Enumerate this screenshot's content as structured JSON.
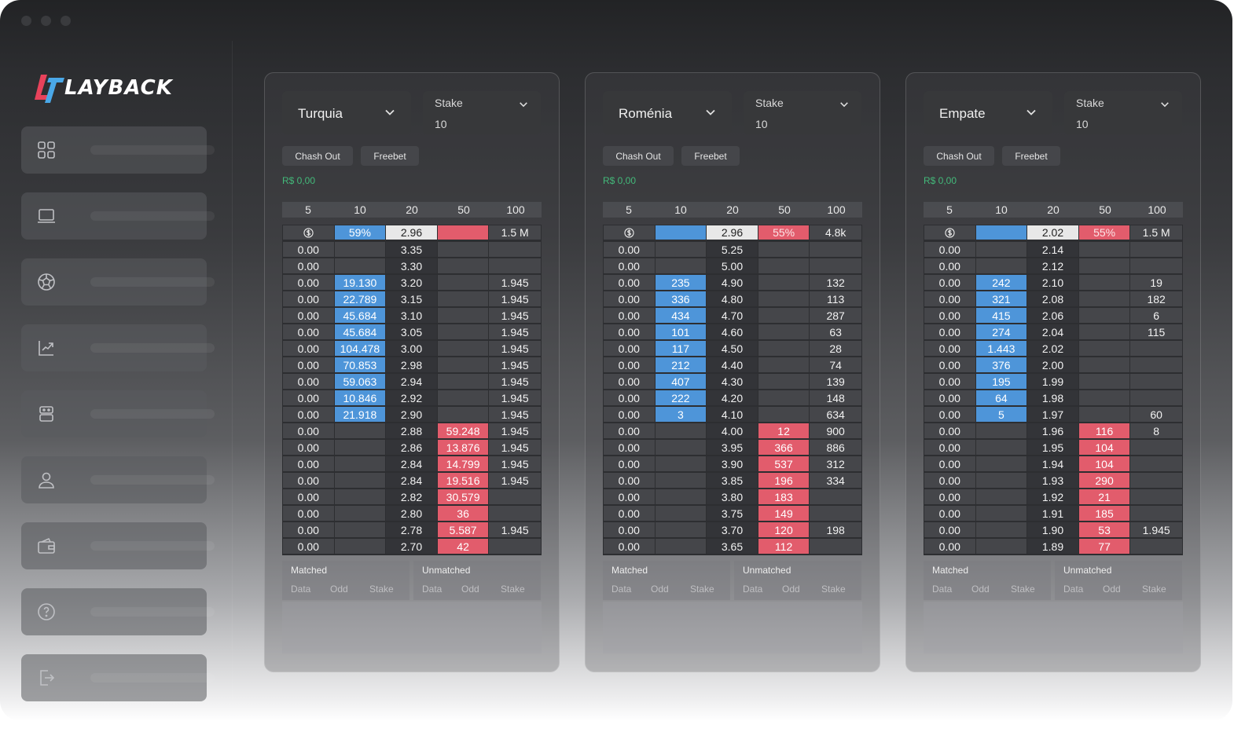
{
  "brand": {
    "name": "LAYBACK"
  },
  "colors": {
    "back": "#4e95d9",
    "lay": "#e25c6c",
    "balance": "#43b97a"
  },
  "sidebar": {
    "items": [
      {
        "icon": "dashboard-grid-icon"
      },
      {
        "icon": "laptop-icon"
      },
      {
        "icon": "soccer-ball-icon"
      },
      {
        "icon": "chart-trend-icon"
      },
      {
        "icon": "robot-icon"
      },
      {
        "icon": "user-icon"
      },
      {
        "icon": "wallet-icon"
      },
      {
        "icon": "help-icon"
      },
      {
        "icon": "logout-icon"
      }
    ]
  },
  "panels": [
    {
      "selection": "Turquia",
      "stake_label": "Stake",
      "stake_value": "10",
      "cash_out_label": "Chash Out",
      "freebet_label": "Freebet",
      "balance": "R$ 0,00",
      "headers": [
        "5",
        "10",
        "20",
        "50",
        "100"
      ],
      "top": {
        "back": "59%",
        "price": "2.96",
        "lay": "",
        "volume": "1.5 M"
      },
      "ladder": [
        [
          "0.00",
          "",
          "3.35",
          "",
          ""
        ],
        [
          "0.00",
          "",
          "3.30",
          "",
          ""
        ],
        [
          "0.00",
          "19.130",
          "3.20",
          "",
          "1.945"
        ],
        [
          "0.00",
          "22.789",
          "3.15",
          "",
          "1.945"
        ],
        [
          "0.00",
          "45.684",
          "3.10",
          "",
          "1.945"
        ],
        [
          "0.00",
          "45.684",
          "3.05",
          "",
          "1.945"
        ],
        [
          "0.00",
          "104.478",
          "3.00",
          "",
          "1.945"
        ],
        [
          "0.00",
          "70.853",
          "2.98",
          "",
          "1.945"
        ],
        [
          "0.00",
          "59.063",
          "2.94",
          "",
          "1.945"
        ],
        [
          "0.00",
          "10.846",
          "2.92",
          "",
          "1.945"
        ],
        [
          "0.00",
          "21.918",
          "2.90",
          "",
          "1.945"
        ],
        [
          "0.00",
          "",
          "2.88",
          "59.248",
          "1.945"
        ],
        [
          "0.00",
          "",
          "2.86",
          "13.876",
          "1.945"
        ],
        [
          "0.00",
          "",
          "2.84",
          "14.799",
          "1.945"
        ],
        [
          "0.00",
          "",
          "2.84",
          "19.516",
          "1.945"
        ],
        [
          "0.00",
          "",
          "2.82",
          "30.579",
          ""
        ],
        [
          "0.00",
          "",
          "2.80",
          "36",
          ""
        ],
        [
          "0.00",
          "",
          "2.78",
          "5.587",
          "1.945"
        ],
        [
          "0.00",
          "",
          "2.70",
          "42",
          ""
        ]
      ],
      "matched_label": "Matched",
      "unmatched_label": "Unmatched",
      "bet_columns": [
        "Data",
        "Odd",
        "Stake"
      ]
    },
    {
      "selection": "Roménia",
      "stake_label": "Stake",
      "stake_value": "10",
      "cash_out_label": "Chash Out",
      "freebet_label": "Freebet",
      "balance": "R$ 0,00",
      "headers": [
        "5",
        "10",
        "20",
        "50",
        "100"
      ],
      "top": {
        "back": "",
        "price": "2.96",
        "lay": "55%",
        "volume": "4.8k"
      },
      "ladder": [
        [
          "0.00",
          "",
          "5.25",
          "",
          ""
        ],
        [
          "0.00",
          "",
          "5.00",
          "",
          ""
        ],
        [
          "0.00",
          "235",
          "4.90",
          "",
          "132"
        ],
        [
          "0.00",
          "336",
          "4.80",
          "",
          "113"
        ],
        [
          "0.00",
          "434",
          "4.70",
          "",
          "287"
        ],
        [
          "0.00",
          "101",
          "4.60",
          "",
          "63"
        ],
        [
          "0.00",
          "117",
          "4.50",
          "",
          "28"
        ],
        [
          "0.00",
          "212",
          "4.40",
          "",
          "74"
        ],
        [
          "0.00",
          "407",
          "4.30",
          "",
          "139"
        ],
        [
          "0.00",
          "222",
          "4.20",
          "",
          "148"
        ],
        [
          "0.00",
          "3",
          "4.10",
          "",
          "634"
        ],
        [
          "0.00",
          "",
          "4.00",
          "12",
          "900"
        ],
        [
          "0.00",
          "",
          "3.95",
          "366",
          "886"
        ],
        [
          "0.00",
          "",
          "3.90",
          "537",
          "312"
        ],
        [
          "0.00",
          "",
          "3.85",
          "196",
          "334"
        ],
        [
          "0.00",
          "",
          "3.80",
          "183",
          ""
        ],
        [
          "0.00",
          "",
          "3.75",
          "149",
          ""
        ],
        [
          "0.00",
          "",
          "3.70",
          "120",
          "198"
        ],
        [
          "0.00",
          "",
          "3.65",
          "112",
          ""
        ]
      ],
      "matched_label": "Matched",
      "unmatched_label": "Unmatched",
      "bet_columns": [
        "Data",
        "Odd",
        "Stake"
      ]
    },
    {
      "selection": "Empate",
      "stake_label": "Stake",
      "stake_value": "10",
      "cash_out_label": "Chash Out",
      "freebet_label": "Freebet",
      "balance": "R$ 0,00",
      "headers": [
        "5",
        "10",
        "20",
        "50",
        "100"
      ],
      "top": {
        "back": "",
        "price": "2.02",
        "lay": "55%",
        "volume": "1.5 M"
      },
      "ladder": [
        [
          "0.00",
          "",
          "2.14",
          "",
          ""
        ],
        [
          "0.00",
          "",
          "2.12",
          "",
          ""
        ],
        [
          "0.00",
          "242",
          "2.10",
          "",
          "19"
        ],
        [
          "0.00",
          "321",
          "2.08",
          "",
          "182"
        ],
        [
          "0.00",
          "415",
          "2.06",
          "",
          "6"
        ],
        [
          "0.00",
          "274",
          "2.04",
          "",
          "115"
        ],
        [
          "0.00",
          "1.443",
          "2.02",
          "",
          ""
        ],
        [
          "0.00",
          "376",
          "2.00",
          "",
          ""
        ],
        [
          "0.00",
          "195",
          "1.99",
          "",
          ""
        ],
        [
          "0.00",
          "64",
          "1.98",
          "",
          ""
        ],
        [
          "0.00",
          "5",
          "1.97",
          "",
          "60"
        ],
        [
          "0.00",
          "",
          "1.96",
          "116",
          "8"
        ],
        [
          "0.00",
          "",
          "1.95",
          "104",
          ""
        ],
        [
          "0.00",
          "",
          "1.94",
          "104",
          ""
        ],
        [
          "0.00",
          "",
          "1.93",
          "290",
          ""
        ],
        [
          "0.00",
          "",
          "1.92",
          "21",
          ""
        ],
        [
          "0.00",
          "",
          "1.91",
          "185",
          ""
        ],
        [
          "0.00",
          "",
          "1.90",
          "53",
          "1.945"
        ],
        [
          "0.00",
          "",
          "1.89",
          "77",
          ""
        ]
      ],
      "matched_label": "Matched",
      "unmatched_label": "Unmatched",
      "bet_columns": [
        "Data",
        "Odd",
        "Stake"
      ]
    }
  ]
}
